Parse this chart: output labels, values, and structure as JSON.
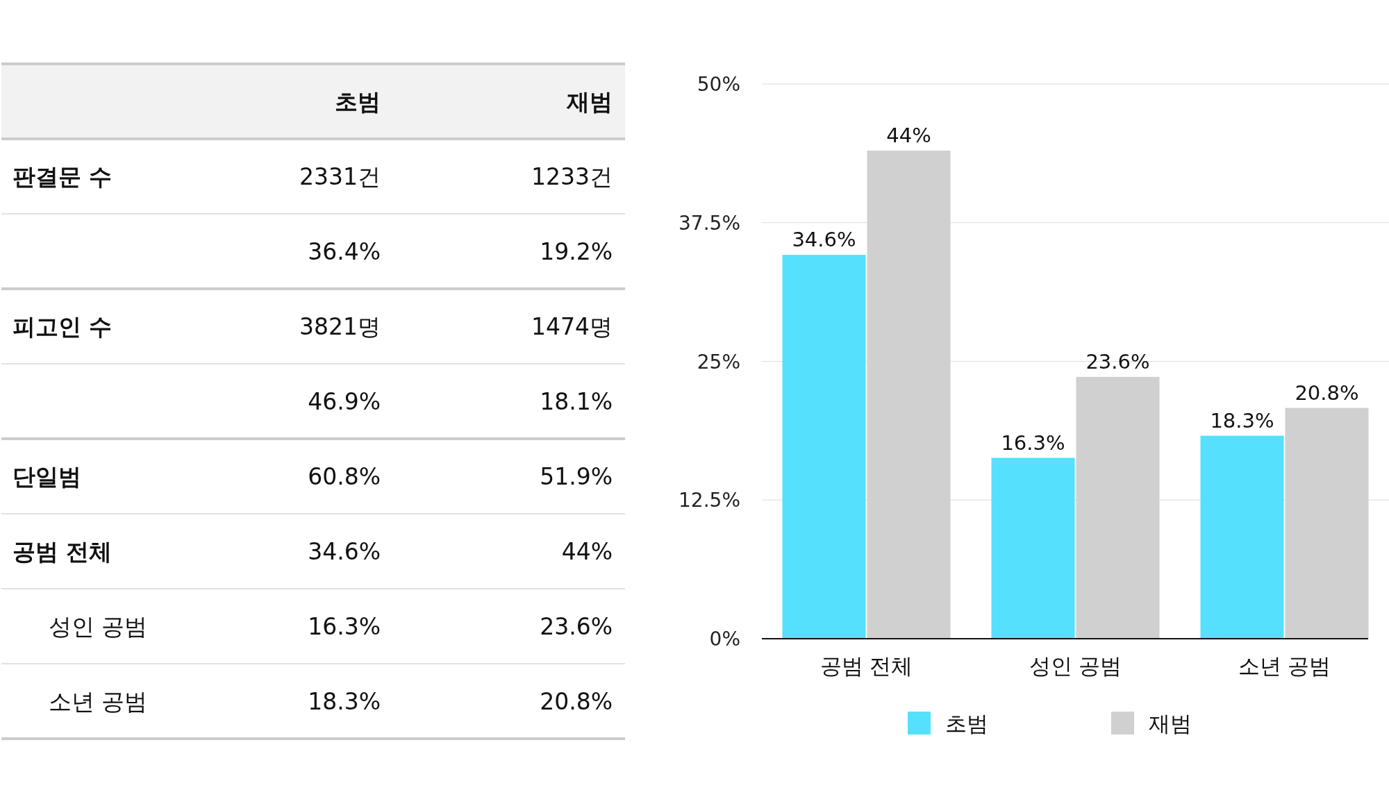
{
  "chart_data": [
    {
      "type": "other",
      "categories": [
        "초범",
        "재범"
      ],
      "y_categories": [
        "판결문 수",
        null,
        "피고인 수",
        null,
        "단일범",
        "공범 전체",
        "성인 공범",
        "소년 공범"
      ],
      "cell_labels": [
        [
          "2331건",
          "1233건"
        ],
        [
          "36.4%",
          "19.2%"
        ],
        [
          "3821명",
          "1474명"
        ],
        [
          "46.9%",
          "18.1%"
        ],
        [
          "60.8%",
          "51.9%"
        ],
        [
          "34.6%",
          "44%"
        ],
        [
          "16.3%",
          "23.6%"
        ],
        [
          "18.3%",
          "20.8%"
        ]
      ]
    },
    {
      "type": "bar",
      "categories": [
        "공범 전체",
        "성인 공범",
        "소년 공범"
      ],
      "series": [
        {
          "name": "초범",
          "color": "#55e0fd",
          "values": [
            34.6,
            16.3,
            18.3
          ],
          "value_labels": [
            "34.6%",
            "16.3%",
            "18.3%"
          ]
        },
        {
          "name": "재범",
          "color": "#d0d0d0",
          "values": [
            44,
            23.6,
            20.8
          ],
          "value_labels": [
            "44%",
            "23.6%",
            "20.8%"
          ]
        }
      ],
      "ylim": [
        0,
        50
      ],
      "yticks": [
        {
          "value": 0,
          "label": "0%"
        },
        {
          "value": 12.5,
          "label": "12.5%"
        },
        {
          "value": 25,
          "label": "25%"
        },
        {
          "value": 37.5,
          "label": "37.5%"
        },
        {
          "value": 50,
          "label": "50%"
        }
      ],
      "grid": "y",
      "legend": "bottom"
    }
  ]
}
